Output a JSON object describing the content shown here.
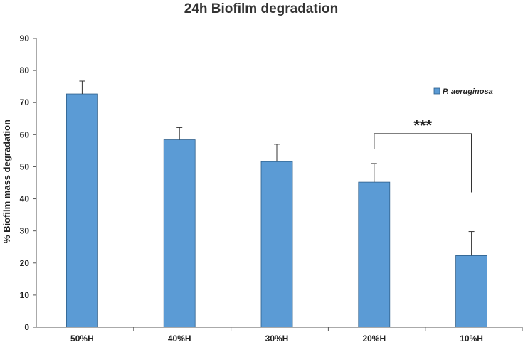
{
  "chart_data": {
    "type": "bar",
    "title": "24h Biofilm degradation",
    "xlabel": "",
    "ylabel": "% Biofilm mass degradation",
    "categories": [
      "50%H",
      "40%H",
      "30%H",
      "20%H",
      "10%H"
    ],
    "series": [
      {
        "name": "P. aeruginosa",
        "values": [
          72.7,
          58.4,
          51.6,
          45.2,
          22.3
        ],
        "error_plus": [
          4.0,
          3.8,
          5.4,
          5.8,
          7.5
        ],
        "color": "#5b9bd5"
      }
    ],
    "ylim": [
      0,
      90
    ],
    "yticks": [
      0,
      10,
      20,
      30,
      40,
      50,
      60,
      70,
      80,
      90
    ],
    "grid": false,
    "legend": "top-right",
    "annotations": [
      {
        "text": "***",
        "from_category": "20%H",
        "to_category": "10%H"
      }
    ]
  }
}
